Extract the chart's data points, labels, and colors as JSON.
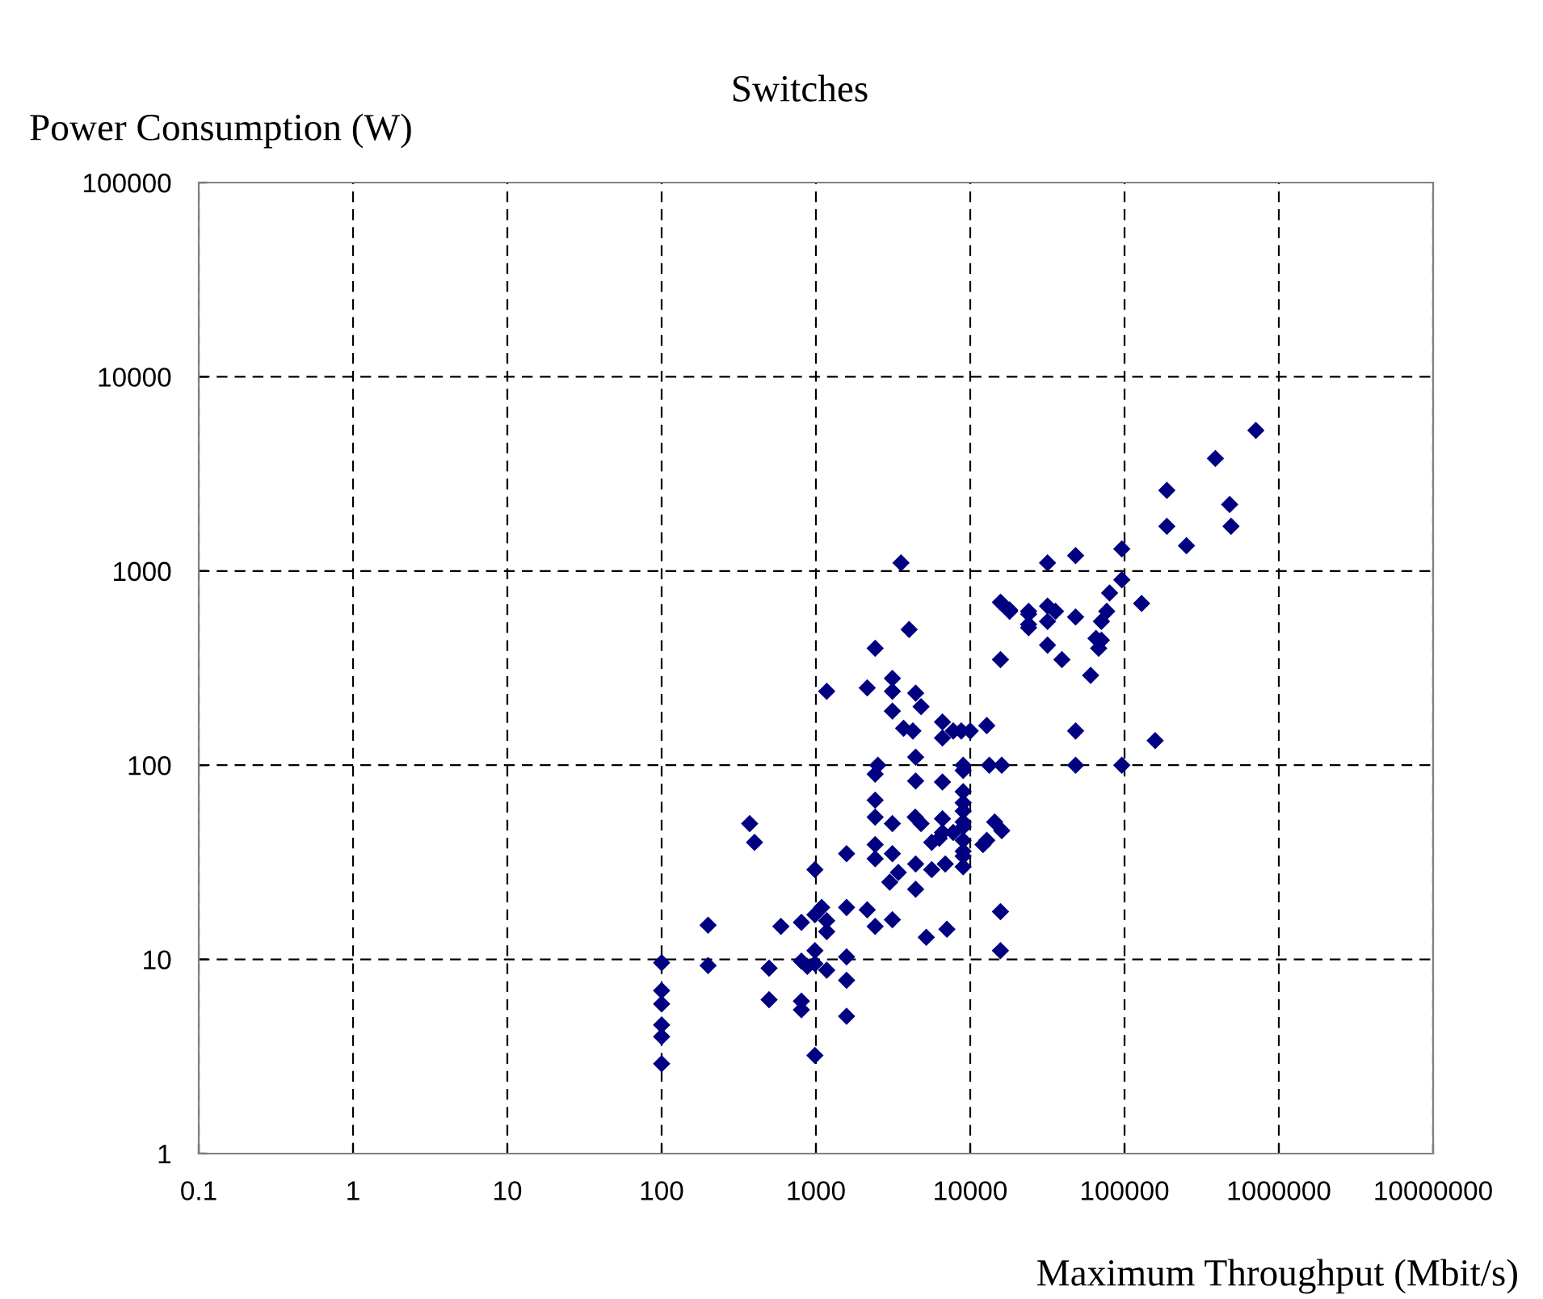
{
  "chart_data": {
    "type": "scatter",
    "title": "Switches",
    "xlabel": "Maximum Throughput (Mbit/s)",
    "ylabel": "Power Consumption (W)",
    "log": "xy",
    "xlim": [
      0.1,
      10000000
    ],
    "ylim": [
      1,
      100000
    ],
    "xticks": [
      0.1,
      1,
      10,
      100,
      1000,
      10000,
      100000,
      1000000,
      10000000
    ],
    "yticks": [
      1,
      10,
      100,
      1000,
      10000,
      100000
    ],
    "grid": true,
    "marker": "diamond",
    "series": [
      {
        "color": "#000080",
        "x": [
          100,
          100,
          100,
          100,
          100,
          100,
          200,
          200,
          3560,
          15700,
          18000,
          23900,
          23900,
          4020,
          2420,
          15700,
          1175,
          2150,
          3130,
          3130,
          3130,
          4430,
          4800,
          3700,
          4250,
          6610,
          6610,
          7760,
          8750,
          10000,
          12800,
          2520,
          2420,
          4430,
          4430,
          6610,
          9000,
          9000,
          9000,
          9000,
          9000,
          9000,
          13300,
          16000,
          2420,
          2420,
          3130,
          4400,
          4800,
          6610,
          6610,
          7760,
          9000,
          9000,
          9000,
          9000,
          9000,
          5630,
          6300,
          12100,
          12800,
          14400,
          16000,
          372,
          400,
          985,
          1580,
          2420,
          2420,
          3130,
          3010,
          3420,
          4430,
          4430,
          5630,
          6890,
          985,
          1090,
          1175,
          1175,
          1580,
          2150,
          2420,
          3130,
          5190,
          7060,
          15700,
          15700,
          593,
          805,
          497,
          497,
          805,
          880,
          805,
          805,
          985,
          985,
          1175,
          1580,
          1580,
          1580,
          985,
          710000,
          388000,
          188000,
          480000,
          188000,
          490000,
          252000,
          96000,
          48200,
          31700,
          96000,
          80000,
          129000,
          16000,
          18000,
          23900,
          23900,
          31700,
          35700,
          31700,
          48200,
          76700,
          70800,
          65300,
          70800,
          68000,
          31700,
          39300,
          60300,
          48200,
          158000,
          48200,
          96000
        ],
        "values": [
          9.6,
          6.9,
          5.9,
          4.6,
          4.0,
          2.9,
          15,
          9.3,
          1100,
          690,
          630,
          600,
          510,
          500,
          400,
          350,
          240,
          250,
          280,
          240,
          190,
          235,
          200,
          155,
          150,
          167,
          138,
          150,
          150,
          150,
          160,
          100,
          90,
          110,
          83,
          82,
          94,
          100,
          73,
          64,
          58,
          51,
          100,
          100,
          66,
          54,
          50,
          54,
          50,
          53,
          45,
          45,
          48,
          41,
          36,
          34,
          30,
          40,
          42,
          39,
          41,
          51,
          46,
          50,
          40,
          29,
          35,
          39,
          33,
          35,
          25,
          28,
          31,
          23,
          29,
          31,
          17,
          18.5,
          15.8,
          13.9,
          18.5,
          18,
          14.8,
          16,
          13,
          14.3,
          17.6,
          11.1,
          14.8,
          15.5,
          9.0,
          6.2,
          9.8,
          9.2,
          6.1,
          5.5,
          11.1,
          9.5,
          8.8,
          10.3,
          7.8,
          5.1,
          3.2,
          5300,
          3800,
          2600,
          2200,
          1700,
          1700,
          1350,
          1300,
          1200,
          1100,
          900,
          770,
          680,
          680,
          620,
          620,
          530,
          660,
          620,
          550,
          580,
          620,
          550,
          450,
          440,
          400,
          415,
          350,
          290,
          150,
          134,
          100,
          100
        ]
      }
    ]
  }
}
